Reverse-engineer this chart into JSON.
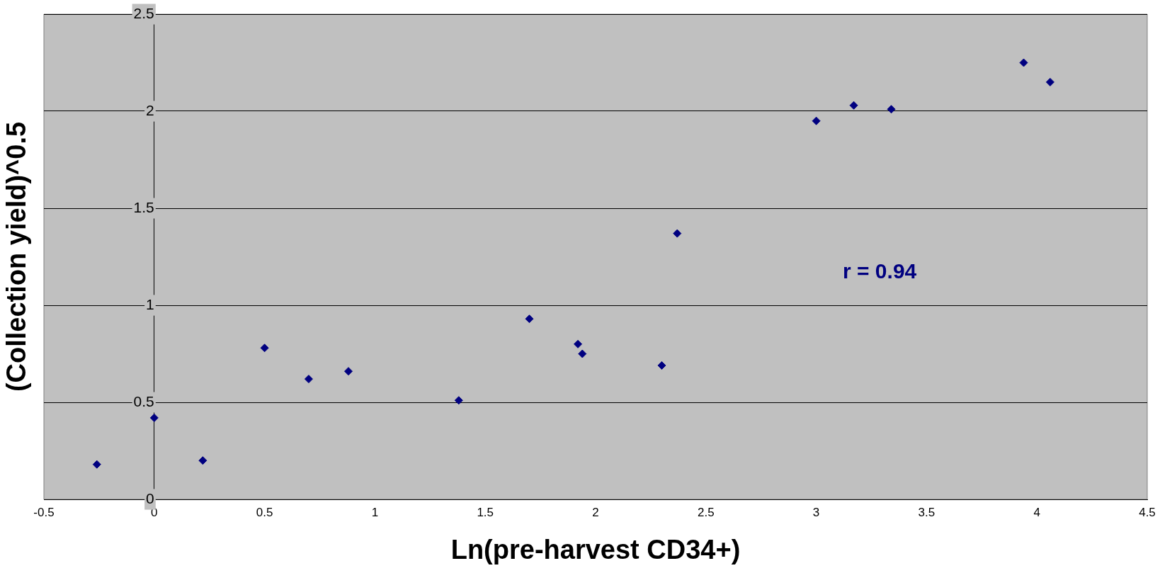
{
  "chart_data": {
    "type": "scatter",
    "xlabel": "Ln(pre-harvest CD34+)",
    "ylabel": "(Collection yield)^0.5",
    "x": [
      -0.26,
      0,
      0.22,
      0.5,
      0.7,
      0.88,
      1.38,
      1.7,
      1.92,
      1.94,
      2.3,
      2.37,
      3.0,
      3.17,
      3.34,
      3.94,
      4.06
    ],
    "series": [
      {
        "color": "#000080",
        "values": [
          0.18,
          0.42,
          0.2,
          0.78,
          0.62,
          0.66,
          0.51,
          0.93,
          0.8,
          0.75,
          0.69,
          1.37,
          1.95,
          2.03,
          2.01,
          2.25,
          2.15
        ]
      }
    ],
    "xlim": [
      -0.5,
      4.5
    ],
    "xticks": [
      -0.5,
      0,
      0.5,
      1,
      1.5,
      2,
      2.5,
      3,
      3.5,
      4,
      4.5
    ],
    "ylim": [
      0,
      2.5
    ],
    "yticks": [
      0,
      0.5,
      1,
      1.5,
      2,
      2.5
    ],
    "grid": "y",
    "marker": "diamond",
    "legend": false,
    "annotations": [
      "r = 0.94"
    ]
  }
}
